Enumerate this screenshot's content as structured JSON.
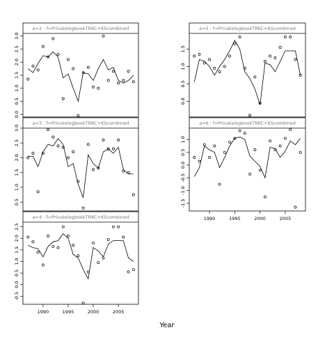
{
  "xlabel": "Year",
  "x_ticks": [
    1990,
    1995,
    2000,
    2005
  ],
  "chart_data": [
    {
      "type": "line",
      "panel": "a=2",
      "strip": "a=2 : f=PrivatelogbookTRKC+KScombined",
      "xlim": [
        1986,
        2009
      ],
      "ylim": [
        -0.1,
        3.1
      ],
      "y_ticks": [
        "0.0",
        "0.5",
        "1.0",
        "1.5",
        "2.0",
        "2.5",
        "3.0"
      ],
      "y_tick_values": [
        0,
        0.5,
        1,
        1.5,
        2,
        2.5,
        3
      ],
      "line": {
        "x": [
          1987,
          1988,
          1989,
          1990,
          1991,
          1992,
          1993,
          1994,
          1995,
          1996,
          1997,
          1998,
          1999,
          2000,
          2001,
          2002,
          2003,
          2004,
          2005,
          2006,
          2007,
          2008
        ],
        "y": [
          1.75,
          1.6,
          1.95,
          2.25,
          2.2,
          2.4,
          2.2,
          1.4,
          1.55,
          1.0,
          0.5,
          1.6,
          1.55,
          1.3,
          1.75,
          2.1,
          1.7,
          1.8,
          1.3,
          1.2,
          1.3,
          1.5
        ]
      },
      "points": {
        "x": [
          1987,
          1988,
          1989,
          1990,
          1991,
          1992,
          1993,
          1994,
          1995,
          1996,
          1997,
          1998,
          1999,
          2000,
          2001,
          2002,
          2003,
          2004,
          2005,
          2006,
          2007,
          2008
        ],
        "y": [
          1.35,
          1.85,
          1.7,
          2.6,
          2.2,
          2.9,
          2.3,
          0.6,
          2.1,
          1.75,
          -0.05,
          1.6,
          1.8,
          1.05,
          1.0,
          3.0,
          1.3,
          1.65,
          1.2,
          1.3,
          1.65,
          1.25
        ]
      }
    },
    {
      "type": "line",
      "panel": "a=3",
      "strip": "a=3 : f=PrivatelogbookTRKC+KScombined",
      "xlim": [
        1986,
        2009
      ],
      "ylim": [
        0.2,
        3.0
      ],
      "y_ticks": [
        "0.5",
        "1.0",
        "1.5",
        "2.0",
        "2.5",
        "3.0"
      ],
      "y_tick_values": [
        0.5,
        1,
        1.5,
        2,
        2.5,
        3
      ],
      "line": {
        "x": [
          1987,
          1988,
          1989,
          1990,
          1991,
          1992,
          1993,
          1994,
          1995,
          1996,
          1997,
          1998,
          1999,
          2000,
          2001,
          2002,
          2003,
          2004,
          2005,
          2006,
          2007,
          2008
        ],
        "y": [
          2.05,
          2.05,
          1.7,
          2.2,
          2.45,
          2.4,
          2.65,
          2.45,
          1.7,
          1.8,
          1.1,
          0.65,
          2.1,
          1.8,
          1.65,
          2.2,
          2.3,
          2.15,
          2.35,
          1.6,
          1.45,
          1.45
        ]
      },
      "points": {
        "x": [
          1987,
          1988,
          1989,
          1990,
          1991,
          1992,
          1993,
          1994,
          1995,
          1996,
          1997,
          1998,
          1999,
          2000,
          2001,
          2002,
          2003,
          2004,
          2005,
          2006,
          2007,
          2008
        ],
        "y": [
          2.0,
          2.15,
          0.85,
          2.15,
          2.95,
          2.7,
          2.4,
          2.35,
          2.0,
          2.2,
          1.2,
          0.3,
          2.45,
          1.6,
          1.65,
          2.6,
          2.3,
          2.3,
          2.6,
          1.55,
          1.5,
          0.75
        ]
      }
    },
    {
      "type": "line",
      "panel": "a=4",
      "strip": "a=4 : f=PrivatelogbookTRKC+KScombined",
      "xlim": [
        1986,
        2009
      ],
      "ylim": [
        -0.85,
        2.7
      ],
      "y_ticks": [
        "-0.5",
        "0.0",
        "0.5",
        "1.0",
        "1.5",
        "2.0",
        "2.5"
      ],
      "y_tick_values": [
        -0.5,
        0,
        0.5,
        1,
        1.5,
        2,
        2.5
      ],
      "line": {
        "x": [
          1987,
          1988,
          1989,
          1990,
          1991,
          1992,
          1993,
          1994,
          1995,
          1996,
          1997,
          1998,
          1999,
          2000,
          2001,
          2002,
          2003,
          2004,
          2005,
          2006,
          2007,
          2008
        ],
        "y": [
          1.7,
          1.6,
          1.55,
          1.2,
          1.65,
          1.85,
          1.9,
          2.2,
          2.0,
          1.3,
          1.15,
          0.65,
          0.25,
          1.6,
          1.45,
          1.2,
          1.75,
          1.9,
          1.9,
          1.9,
          1.15,
          1.0
        ]
      },
      "points": {
        "x": [
          1987,
          1988,
          1989,
          1990,
          1991,
          1992,
          1993,
          1994,
          1995,
          1996,
          1997,
          1998,
          1999,
          2000,
          2001,
          2002,
          2003,
          2004,
          2005,
          2006,
          2007,
          2008
        ],
        "y": [
          2.05,
          1.85,
          1.4,
          0.85,
          2.1,
          1.65,
          1.6,
          2.5,
          2.1,
          1.7,
          1.25,
          -0.8,
          0.55,
          1.8,
          0.95,
          1.15,
          1.95,
          2.5,
          2.5,
          2.05,
          0.55,
          0.65
        ]
      }
    },
    {
      "type": "line",
      "panel": "a=5",
      "strip": "a=5 : f=PrivatelogbookTRKC+KScombined",
      "xlim": [
        1986,
        2009
      ],
      "ylim": [
        -0.45,
        1.95
      ],
      "y_ticks": [
        "0.0",
        "0.5",
        "1.0",
        "1.5"
      ],
      "y_tick_values": [
        0,
        0.5,
        1,
        1.5
      ],
      "line": {
        "x": [
          1987,
          1988,
          1989,
          1990,
          1991,
          1992,
          1993,
          1994,
          1995,
          1996,
          1997,
          1998,
          1999,
          2000,
          2001,
          2002,
          2003,
          2004,
          2005,
          2006,
          2007,
          2008
        ],
        "y": [
          0.55,
          1.2,
          1.15,
          1.0,
          0.75,
          1.0,
          1.2,
          1.45,
          1.75,
          1.5,
          0.85,
          0.65,
          0.35,
          -0.1,
          1.1,
          1.05,
          0.85,
          1.15,
          1.45,
          1.45,
          1.45,
          0.75
        ]
      },
      "points": {
        "x": [
          1987,
          1988,
          1989,
          1990,
          1991,
          1992,
          1993,
          1994,
          1995,
          1996,
          1997,
          1998,
          1999,
          2000,
          2001,
          2002,
          2003,
          2004,
          2005,
          2006,
          2007,
          2008
        ],
        "y": [
          1.3,
          1.35,
          1.1,
          1.2,
          0.95,
          0.85,
          1.0,
          1.3,
          1.65,
          1.85,
          0.95,
          -0.4,
          0.7,
          -0.05,
          1.15,
          1.3,
          1.25,
          1.55,
          1.85,
          1.85,
          1.2,
          0.75
        ]
      }
    },
    {
      "type": "line",
      "panel": "a=6",
      "strip": "a=6 : f=PrivatelogbookTRKC+KScombined",
      "xlim": [
        1986,
        2009
      ],
      "ylim": [
        -1.8,
        1.45
      ],
      "y_ticks": [
        "-1.5",
        "-1.0",
        "-0.5",
        "0.0",
        "0.5",
        "1.0",
        "1.5"
      ],
      "y_tick_values": [
        -1.5,
        -1,
        -0.5,
        0,
        0.5,
        1,
        1.5
      ],
      "line": {
        "x": [
          1987,
          1988,
          1989,
          1990,
          1991,
          1992,
          1993,
          1994,
          1995,
          1996,
          1997,
          1998,
          1999,
          2000,
          2001,
          2002,
          2003,
          2004,
          2005,
          2006,
          2007,
          2008
        ],
        "y": [
          -0.45,
          -0.1,
          0.75,
          0.6,
          0.5,
          -0.1,
          0.3,
          0.75,
          1.05,
          1.1,
          1.0,
          0.35,
          0.15,
          -0.05,
          -0.5,
          0.7,
          0.65,
          0.3,
          0.55,
          0.95,
          0.8,
          1.05
        ]
      },
      "points": {
        "x": [
          1987,
          1988,
          1989,
          1990,
          1991,
          1992,
          1993,
          1994,
          1995,
          1996,
          1997,
          1998,
          1999,
          2000,
          2001,
          2002,
          2003,
          2004,
          2005,
          2006,
          2007,
          2008
        ],
        "y": [
          0.3,
          0.15,
          0.8,
          0.3,
          0.75,
          -0.75,
          0.5,
          0.9,
          1.05,
          1.35,
          1.25,
          -0.35,
          0.6,
          -0.2,
          -1.25,
          0.95,
          0.6,
          0.75,
          1.05,
          1.4,
          -1.65,
          0.5
        ]
      }
    }
  ]
}
